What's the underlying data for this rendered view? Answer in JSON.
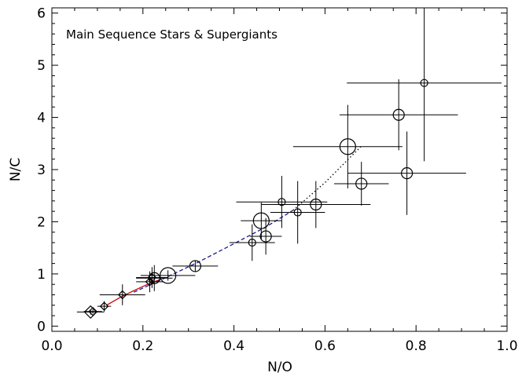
{
  "chart_data": {
    "type": "scatter",
    "title": "",
    "annotation": "Main Sequence Stars & Supergiants",
    "xlabel": "N/O",
    "ylabel": "N/C",
    "xlim": [
      0.0,
      1.0
    ],
    "ylim": [
      -0.1,
      6.1
    ],
    "x_ticks": [
      0.0,
      0.2,
      0.4,
      0.6,
      0.8,
      1.0
    ],
    "x_tick_labels": [
      "0.0",
      "0.2",
      "0.4",
      "0.6",
      "0.8",
      "1.0"
    ],
    "y_ticks": [
      0,
      1,
      2,
      3,
      4,
      5,
      6
    ],
    "y_tick_labels": [
      "0",
      "1",
      "2",
      "3",
      "4",
      "5",
      "6"
    ],
    "grid": false,
    "legend": "none",
    "series": [
      {
        "marker": "diamond",
        "color": "#000000",
        "points": [
          {
            "x": 0.085,
            "y": 0.27,
            "xerr": 0.03,
            "yerr": 0.05,
            "size": "medium"
          },
          {
            "x": 0.09,
            "y": 0.28,
            "xerr": 0.02,
            "yerr": 0.04,
            "size": "small"
          },
          {
            "x": 0.115,
            "y": 0.38,
            "xerr": 0.015,
            "yerr": 0.1,
            "size": "small"
          },
          {
            "x": 0.155,
            "y": 0.6,
            "xerr": 0.05,
            "yerr": 0.2,
            "size": "small"
          },
          {
            "x": 0.215,
            "y": 0.85,
            "xerr": 0.03,
            "yerr": 0.2,
            "size": "small"
          },
          {
            "x": 0.22,
            "y": 0.93,
            "xerr": 0.035,
            "yerr": 0.2,
            "size": "small"
          }
        ]
      },
      {
        "marker": "circle",
        "color": "#000000",
        "points": [
          {
            "x": 0.225,
            "y": 0.92,
            "xerr": 0.04,
            "yerr": 0.25,
            "size": "medium"
          },
          {
            "x": 0.255,
            "y": 0.97,
            "xerr": 0.06,
            "yerr": 0.1,
            "size": "large"
          },
          {
            "x": 0.315,
            "y": 1.15,
            "xerr": 0.05,
            "yerr": 0.1,
            "size": "medium"
          },
          {
            "x": 0.44,
            "y": 1.6,
            "xerr": 0.05,
            "yerr": 0.35,
            "size": "small"
          },
          {
            "x": 0.46,
            "y": 2.02,
            "xerr": 0.045,
            "yerr": 0.35,
            "size": "large"
          },
          {
            "x": 0.47,
            "y": 1.72,
            "xerr": 0.035,
            "yerr": 0.35,
            "size": "medium"
          },
          {
            "x": 0.505,
            "y": 2.38,
            "xerr": 0.1,
            "yerr": 0.5,
            "size": "small"
          },
          {
            "x": 0.54,
            "y": 2.18,
            "xerr": 0.06,
            "yerr": 0.6,
            "size": "small"
          },
          {
            "x": 0.58,
            "y": 2.33,
            "xerr": 0.12,
            "yerr": 0.45,
            "size": "medium"
          },
          {
            "x": 0.65,
            "y": 3.44,
            "xerr": 0.12,
            "yerr": 0.8,
            "size": "large"
          },
          {
            "x": 0.68,
            "y": 2.73,
            "xerr": 0.06,
            "yerr": 0.42,
            "size": "medium"
          },
          {
            "x": 0.762,
            "y": 4.05,
            "xerr": 0.13,
            "yerr": 0.68,
            "size": "medium"
          },
          {
            "x": 0.78,
            "y": 2.93,
            "xerr": 0.13,
            "yerr": 0.8,
            "size": "medium"
          },
          {
            "x": 0.818,
            "y": 4.66,
            "xerr": 0.17,
            "yerr": 1.5,
            "size": "small"
          }
        ]
      }
    ],
    "curves": [
      {
        "style": "solid",
        "color": "#cc0000",
        "x": [
          0.12,
          0.15,
          0.18,
          0.21,
          0.24
        ],
        "y": [
          0.4,
          0.55,
          0.68,
          0.8,
          0.9
        ]
      },
      {
        "style": "dashed",
        "color": "#1a1a99",
        "x": [
          0.18,
          0.25,
          0.32,
          0.4,
          0.47,
          0.53
        ],
        "y": [
          0.65,
          0.93,
          1.22,
          1.58,
          1.9,
          2.22
        ]
      },
      {
        "style": "dotted",
        "color": "#000000",
        "x": [
          0.53,
          0.6,
          0.68
        ],
        "y": [
          2.22,
          2.75,
          3.45
        ]
      }
    ]
  }
}
